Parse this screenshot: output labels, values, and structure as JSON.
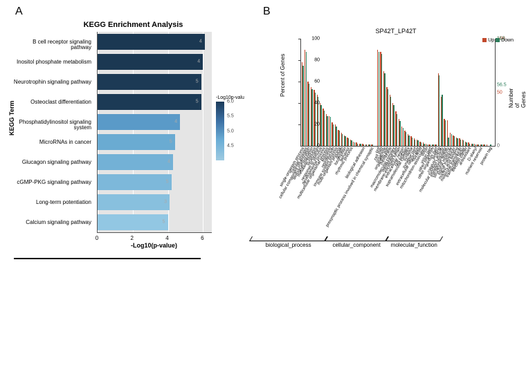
{
  "panel_labels": {
    "A": "A",
    "B": "B"
  },
  "panelA": {
    "title": "KEGG Enrichment Analysis",
    "ylabel": "KEGG Term",
    "xlabel": "-Log10(p-value)",
    "xlim": [
      0,
      6.5
    ],
    "xticks": [
      0,
      2,
      4,
      6
    ],
    "plot_bg": "#e5e5e5",
    "grid_color": "#ffffff",
    "legend": {
      "title": "-Log10p-valu",
      "min": 4.0,
      "max": 6.0,
      "ticks": [
        6.0,
        5.5,
        5.0,
        4.5
      ],
      "grad_stops": [
        "#9ecae1",
        "#6baed6",
        "#3c70a4",
        "#1b3b5a"
      ]
    },
    "bars": [
      {
        "term": "B cell receptor signaling pathway",
        "value": 6.1,
        "color": "#1b3852",
        "end_label": "4"
      },
      {
        "term": "Inositol phosphate metabolism",
        "value": 6.0,
        "color": "#1b3852",
        "end_label": "4"
      },
      {
        "term": "Neurotrophin signaling pathway",
        "value": 5.9,
        "color": "#1c3a55",
        "end_label": "5"
      },
      {
        "term": "Osteoclast differentiation",
        "value": 5.9,
        "color": "#1c3a55",
        "end_label": "5"
      },
      {
        "term": "Phosphatidylinositol signaling system",
        "value": 4.7,
        "color": "#5a9ac8",
        "end_label": "4"
      },
      {
        "term": "MicroRNAs in cancer",
        "value": 4.4,
        "color": "#6aabd2",
        "end_label": "5"
      },
      {
        "term": "Glucagon signaling pathway",
        "value": 4.3,
        "color": "#73b1d6",
        "end_label": "4"
      },
      {
        "term": "cGMP-PKG signaling pathway",
        "value": 4.2,
        "color": "#7db8da",
        "end_label": "5"
      },
      {
        "term": "Long-term potentiation",
        "value": 4.1,
        "color": "#88c0de",
        "end_label": "3"
      },
      {
        "term": "Calcium signaling pathway",
        "value": 4.0,
        "color": "#92c7e3",
        "end_label": "5"
      }
    ]
  },
  "panelB": {
    "title": "SP42T_LP42T",
    "ylabel_left": "Percent of Genes",
    "ylabel_right": "Number of Genes",
    "left_ticks": [
      0,
      20,
      40,
      60,
      80,
      100
    ],
    "right_ticks": [
      {
        "v": 100,
        "label": "100",
        "color": "#c2492c"
      },
      {
        "v": 113,
        "label": "113",
        "color": "#2e7d5b"
      },
      {
        "v": 56.5,
        "label": "56.5",
        "color": "#2e7d5b"
      },
      {
        "v": 50,
        "label": "50",
        "color": "#c2492c"
      },
      {
        "v": 0,
        "label": "0",
        "color": "#555555"
      }
    ],
    "ylim": [
      0,
      100
    ],
    "up_color": "#c2492c",
    "down_color": "#2e7d5b",
    "legend": {
      "up": "Up",
      "down": "Down"
    },
    "groups": [
      {
        "name": "biological_process",
        "start": 0,
        "end": 24
      },
      {
        "name": "cellular_component",
        "start": 25,
        "end": 44
      },
      {
        "name": "molecular_function",
        "start": 45,
        "end": 62
      }
    ],
    "bars": [
      {
        "l": "single-organism process",
        "u": 78,
        "d": 75
      },
      {
        "l": "cellular process",
        "u": 90,
        "d": 88
      },
      {
        "l": "cellular component organization",
        "u": 60,
        "d": 58
      },
      {
        "l": "biological regulation",
        "u": 55,
        "d": 53
      },
      {
        "l": "metabolic process",
        "u": 52,
        "d": 50
      },
      {
        "l": "localization",
        "u": 48,
        "d": 46
      },
      {
        "l": "response to stimulus",
        "u": 40,
        "d": 38
      },
      {
        "l": "developmental process",
        "u": 35,
        "d": 33
      },
      {
        "l": "multicellular organismal process",
        "u": 30,
        "d": 28
      },
      {
        "l": "signaling",
        "u": 28,
        "d": 27
      },
      {
        "l": "reproduction",
        "u": 22,
        "d": 20
      },
      {
        "l": "immune system process",
        "u": 20,
        "d": 18
      },
      {
        "l": "multi-organism process",
        "u": 15,
        "d": 14
      },
      {
        "l": "growth",
        "u": 12,
        "d": 11
      },
      {
        "l": "locomotion",
        "u": 10,
        "d": 9
      },
      {
        "l": "behavior",
        "u": 8,
        "d": 7
      },
      {
        "l": "rhythmic process",
        "u": 6,
        "d": 5
      },
      {
        "l": " ",
        "u": 4,
        "d": 3
      },
      {
        "l": " ",
        "u": 3,
        "d": 2
      },
      {
        "l": " ",
        "u": 2,
        "d": 2
      },
      {
        "l": "biological adhesion",
        "u": 2,
        "d": 1
      },
      {
        "l": " ",
        "u": 1,
        "d": 1
      },
      {
        "l": " ",
        "u": 1,
        "d": 1
      },
      {
        "l": "presynaptic process involved in chemical synaptic",
        "u": 1,
        "d": 1
      },
      {
        "l": " ",
        "u": 0,
        "d": 0
      },
      {
        "l": "cell",
        "u": 90,
        "d": 88
      },
      {
        "l": "cell part",
        "u": 88,
        "d": 86
      },
      {
        "l": "organelle",
        "u": 70,
        "d": 68
      },
      {
        "l": "organelle part",
        "u": 55,
        "d": 53
      },
      {
        "l": "membrane",
        "u": 48,
        "d": 46
      },
      {
        "l": "macromolecular complex",
        "u": 40,
        "d": 38
      },
      {
        "l": "membrane part",
        "u": 32,
        "d": 30
      },
      {
        "l": "membrane-enclosed lumen",
        "u": 25,
        "d": 23
      },
      {
        "l": "extracellular region",
        "u": 18,
        "d": 17
      },
      {
        "l": "cell junction",
        "u": 14,
        "d": 13
      },
      {
        "l": "supramolecular complex",
        "u": 11,
        "d": 10
      },
      {
        "l": "synapse",
        "u": 9,
        "d": 8
      },
      {
        "l": "synapse part",
        "u": 7,
        "d": 6
      },
      {
        "l": "extracellular region part",
        "u": 6,
        "d": 5
      },
      {
        "l": "nucleoid",
        "u": 4,
        "d": 3
      },
      {
        "l": "mitochondrion-associated",
        "u": 3,
        "d": 2
      },
      {
        "l": "virion",
        "u": 2,
        "d": 1
      },
      {
        "l": "virion part",
        "u": 1,
        "d": 1
      },
      {
        "l": "other organism",
        "u": 1,
        "d": 1
      },
      {
        "l": "other organism part",
        "u": 1,
        "d": 1
      },
      {
        "l": "binding",
        "u": 68,
        "d": 66
      },
      {
        "l": "catalytic activity",
        "u": 46,
        "d": 48
      },
      {
        "l": "molecular function regulator",
        "u": 25,
        "d": 24
      },
      {
        "l": "transporter activity",
        "u": 24,
        "d": 8
      },
      {
        "l": "structural molecule",
        "u": 12,
        "d": 11
      },
      {
        "l": "signal transducer",
        "u": 10,
        "d": 9
      },
      {
        "l": "nucleic acid binding",
        "u": 8,
        "d": 7
      },
      {
        "l": "molecular transducer",
        "u": 7,
        "d": 6
      },
      {
        "l": "transcription factor",
        "u": 6,
        "d": 5
      },
      {
        "l": "electron carrier",
        "u": 4,
        "d": 3
      },
      {
        "l": "antioxidant",
        "u": 3,
        "d": 2
      },
      {
        "l": " ",
        "u": 2,
        "d": 2
      },
      {
        "l": "D-alanyl",
        "u": 2,
        "d": 1
      },
      {
        "l": " ",
        "u": 1,
        "d": 1
      },
      {
        "l": "nutrient reservoir",
        "u": 1,
        "d": 1
      },
      {
        "l": " ",
        "u": 1,
        "d": 1
      },
      {
        "l": " ",
        "u": 1,
        "d": 0
      },
      {
        "l": "protein tag",
        "u": 0,
        "d": 1
      },
      {
        "l": " ",
        "u": 0,
        "d": 0
      }
    ]
  }
}
